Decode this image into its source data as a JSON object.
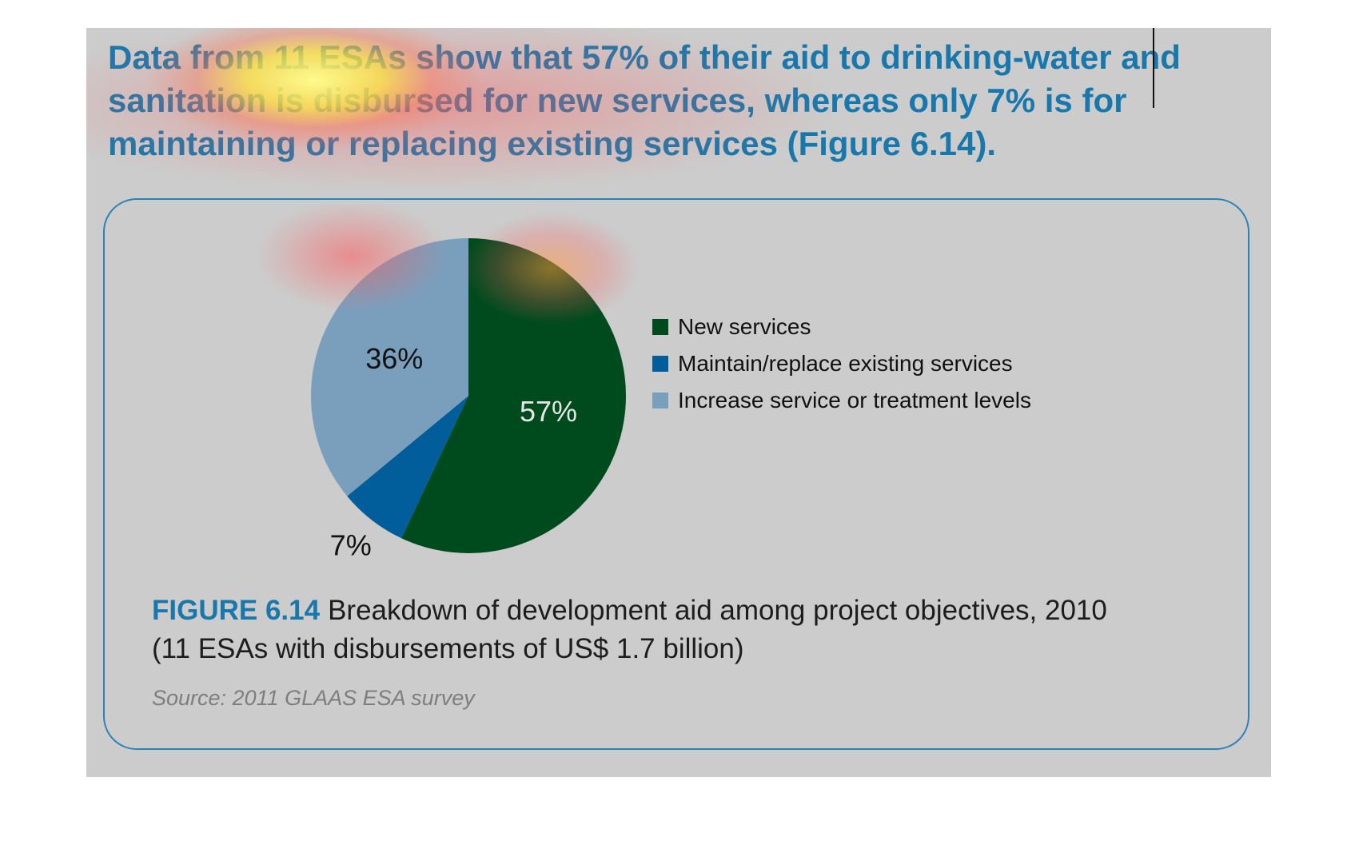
{
  "headline": "Data from 11 ESAs show that 57% of their aid to drinking-water and sanitation is disbursed for new services, whereas only 7% is for maintaining or replacing existing services (Figure 6.14).",
  "chart_data": {
    "type": "pie",
    "title": "",
    "slices": [
      {
        "label": "New services",
        "value": 57,
        "value_label": "57%",
        "color": "#004b1e"
      },
      {
        "label": "Maintain/replace existing services",
        "value": 7,
        "value_label": "7%",
        "color": "#015e9a"
      },
      {
        "label": "Increase service or treatment levels",
        "value": 36,
        "value_label": "36%",
        "color": "#7a9fbd"
      }
    ],
    "legend_position": "right"
  },
  "caption": {
    "figure_label": "FIGURE 6.14",
    "text": "Breakdown of development aid among project objectives, 2010 (11 ESAs with disbursements of US$ 1.7 billion)"
  },
  "source": "Source: 2011 GLAAS ESA survey",
  "colors": {
    "panel_bg": "#cccccc",
    "accent_blue": "#1878ab",
    "frame_border": "#2b84b8"
  }
}
